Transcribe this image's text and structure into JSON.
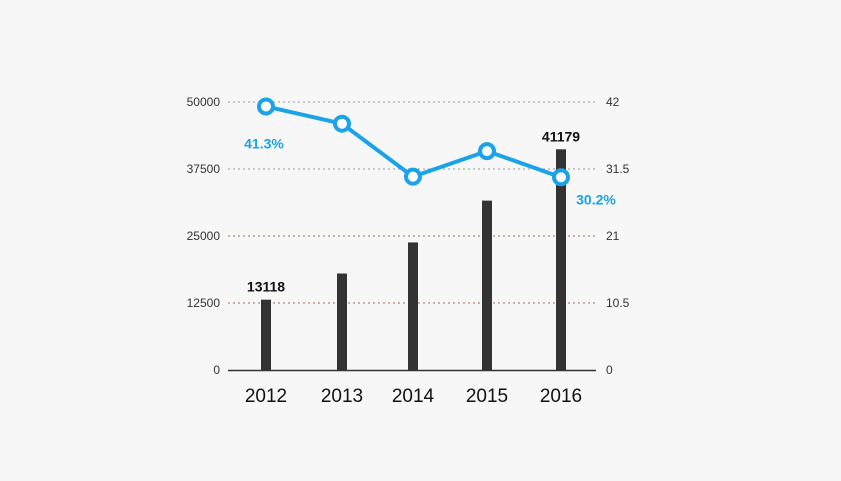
{
  "chart_data": {
    "type": "bar",
    "categories": [
      "2012",
      "2013",
      "2014",
      "2015",
      "2016"
    ],
    "series": [
      {
        "kind": "bar",
        "axis": "left",
        "values": [
          13118,
          18000,
          23800,
          31600,
          41179
        ],
        "labeled_points": [
          {
            "index": 0,
            "label": "13118"
          },
          {
            "index": 4,
            "label": "41179"
          }
        ]
      },
      {
        "kind": "line",
        "axis": "right",
        "values": [
          41.3,
          38.6,
          30.3,
          34.3,
          30.2
        ],
        "labeled_points": [
          {
            "index": 0,
            "label": "41.3%"
          },
          {
            "index": 4,
            "label": "30.2%"
          }
        ]
      }
    ],
    "left_axis": {
      "ylim": [
        0,
        50000
      ],
      "ticks": [
        0,
        12500,
        25000,
        37500,
        50000
      ],
      "tick_labels": [
        "0",
        "12500",
        "25000",
        "37500",
        "50000"
      ]
    },
    "right_axis": {
      "ylim": [
        0,
        42
      ],
      "ticks": [
        0,
        10.5,
        21,
        31.5,
        42
      ],
      "tick_labels": [
        "0",
        "10.5",
        "21",
        "31.5",
        "42"
      ]
    },
    "grid": "horizontal-dotted",
    "colors": {
      "bar": "#333333",
      "line": "#1aa3e8",
      "marker_fill": "#ffffff",
      "grid_upper": "#9a9a9a",
      "grid_lower": "#b06a5a",
      "axis": "#333333",
      "label_text": "#111111",
      "line_label_text": "#1aa3e8"
    }
  }
}
